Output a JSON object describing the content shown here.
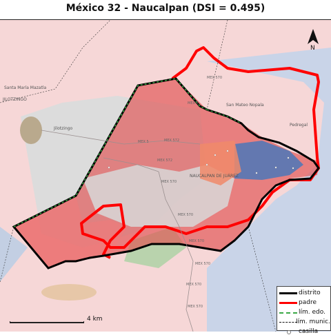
{
  "title": "México 32 - Naucalpan (DSI = 0.495)",
  "colors": {
    "distrito": "#000000",
    "padre": "#ff0000",
    "lim_edo": "#3aa845",
    "lim_munic": "#0a0a0a",
    "casilla": "#ffffff",
    "district_fill": "#e05050",
    "urban_fill": "#b9c8e0",
    "rural_fill": "#f4cccc"
  },
  "place_labels": [
    "JILOTZINGO",
    "Jilotzingo",
    "Santa María Mazatla",
    "NAUCALPAN DE JUÁREZ",
    "San Mateo Nopala",
    "Pedregal"
  ],
  "road_labels": [
    "MEX 5",
    "MEX 5",
    "MEX 572",
    "MEX 572",
    "MEX 570",
    "MEX 570",
    "MEX 570",
    "MEX 570",
    "MEX 570",
    "MEX 570",
    "MEX 570"
  ],
  "legend": {
    "items": [
      {
        "key": "distrito",
        "label": "distrito"
      },
      {
        "key": "padre",
        "label": "padre"
      },
      {
        "key": "lim_edo",
        "label": "lím. edo."
      },
      {
        "key": "lim_munic",
        "label": "lím. munic."
      },
      {
        "key": "casilla",
        "label": "casilla"
      }
    ]
  },
  "scale": {
    "label": "4 km"
  },
  "north": {
    "label": "N"
  }
}
